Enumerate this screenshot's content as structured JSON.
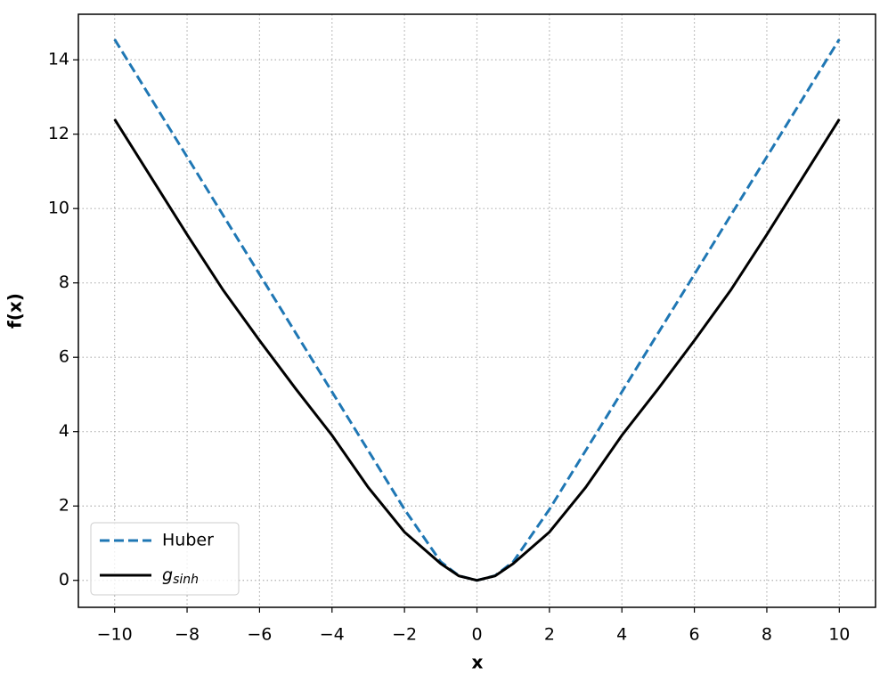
{
  "chart_data": {
    "type": "line",
    "xlabel": "x",
    "ylabel": "f(x)",
    "xlim": [
      -11,
      11
    ],
    "ylim": [
      -0.725,
      15.225
    ],
    "xticks": [
      {
        "value": -10,
        "label": "−10"
      },
      {
        "value": -8,
        "label": "−8"
      },
      {
        "value": -6,
        "label": "−6"
      },
      {
        "value": -4,
        "label": "−4"
      },
      {
        "value": -2,
        "label": "−2"
      },
      0,
      2,
      4,
      6,
      8,
      10
    ],
    "yticks": [
      0,
      2,
      4,
      6,
      8,
      10,
      12,
      14
    ],
    "grid": true,
    "legend": "lower left",
    "x": [
      -10,
      -9,
      -8,
      -7,
      -6,
      -5,
      -4,
      -3,
      -2,
      -1,
      -0.5,
      0,
      0.5,
      1,
      2,
      3,
      4,
      5,
      6,
      7,
      8,
      9,
      10
    ],
    "series": [
      {
        "name": "Huber",
        "color": "#1f77b4",
        "dash": true,
        "values": [
          14.55,
          12.97,
          11.39,
          9.81,
          8.23,
          6.65,
          5.07,
          3.49,
          1.91,
          0.5,
          0.125,
          0,
          0.125,
          0.5,
          1.91,
          3.49,
          5.07,
          6.65,
          8.23,
          9.81,
          11.39,
          12.97,
          14.55
        ]
      },
      {
        "name": "g_sinh",
        "color": "#000000",
        "dash": false,
        "values": [
          12.4,
          10.85,
          9.3,
          7.8,
          6.45,
          5.15,
          3.9,
          2.5,
          1.3,
          0.45,
          0.12,
          0,
          0.12,
          0.45,
          1.3,
          2.5,
          3.9,
          5.15,
          6.45,
          7.8,
          9.3,
          10.85,
          12.4
        ]
      }
    ]
  }
}
